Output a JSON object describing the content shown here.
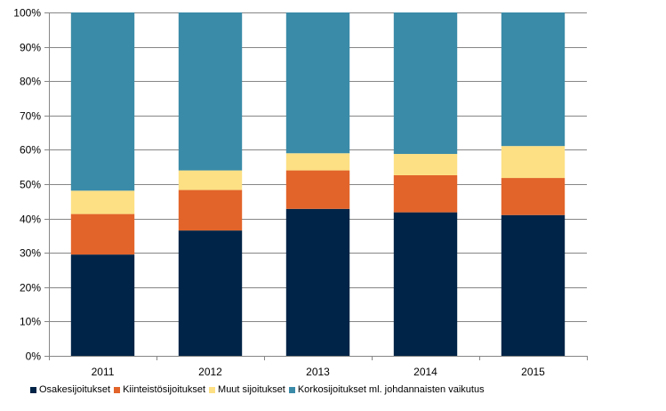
{
  "chart_data": {
    "type": "bar",
    "stacked": true,
    "categories": [
      "2011",
      "2012",
      "2013",
      "2014",
      "2015"
    ],
    "series": [
      {
        "name": "Osakesijoitukset",
        "color": "#002447",
        "values": [
          29.5,
          36.5,
          42.8,
          41.8,
          41.0
        ]
      },
      {
        "name": "Kiinteistösijoitukset",
        "color": "#e2642a",
        "values": [
          11.8,
          11.8,
          11.2,
          10.8,
          10.8
        ]
      },
      {
        "name": "Muut sijoitukset",
        "color": "#fde084",
        "values": [
          6.8,
          5.7,
          5.0,
          6.2,
          9.3
        ]
      },
      {
        "name": "Korkosijoitukset ml. johdannaisten vaikutus",
        "color": "#3a8ba8",
        "values": [
          51.9,
          46.0,
          41.0,
          41.2,
          38.9
        ]
      }
    ],
    "ylim": [
      0,
      100
    ],
    "yticks": [
      "0%",
      "10%",
      "20%",
      "30%",
      "40%",
      "50%",
      "60%",
      "70%",
      "80%",
      "90%",
      "100%"
    ],
    "grid": true,
    "legend": "bottom",
    "title": "",
    "xlabel": "",
    "ylabel": ""
  }
}
